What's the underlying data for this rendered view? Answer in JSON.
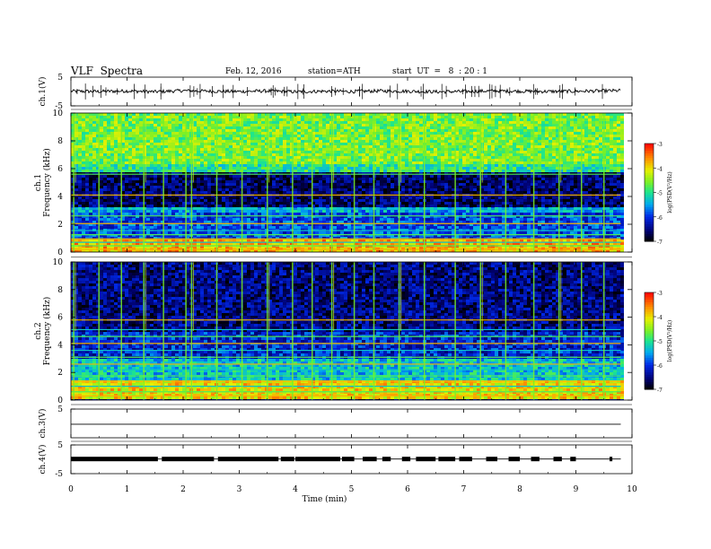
{
  "header": {
    "title": "VLF  Spectra",
    "date": "Feb. 12, 2016",
    "station": "station=ATH",
    "start": "start  UT  =   8  : 20 : 1"
  },
  "chart_data": [
    {
      "type": "line",
      "panel": "ch1-waveform",
      "ylabel": "ch.1(V)",
      "ylim": [
        -5,
        5
      ],
      "yticks": [
        "5",
        "-5"
      ],
      "x": [
        0,
        0.5,
        1,
        1.5,
        2,
        2.5,
        3,
        3.5,
        4,
        4.5,
        5,
        5.5,
        6,
        6.5,
        7,
        7.5,
        8,
        8.5,
        9,
        9.5,
        9.8
      ],
      "values": [
        0.1,
        0.0,
        0.2,
        -0.1,
        0.3,
        0.1,
        0.0,
        0.2,
        -0.1,
        0.1,
        0.0,
        0.2,
        0.1,
        -0.1,
        0.0,
        0.2,
        0.1,
        0.0,
        0.1,
        0.2,
        0.3
      ]
    },
    {
      "type": "heatmap",
      "panel": "ch1-spectrogram",
      "ylabel": "ch.1\nFrequency  (kHz)",
      "ylim": [
        0,
        10
      ],
      "yticks": [
        "0",
        "2",
        "4",
        "6",
        "8",
        "10"
      ],
      "colorbar": {
        "label": "log(PSD(V²/Hz)",
        "range": [
          -7,
          -3
        ],
        "ticks": [
          "-3",
          "-4",
          "-5",
          "-6",
          "-7"
        ]
      },
      "bands_khz": [
        [
          0,
          1.0,
          -3.8
        ],
        [
          1.0,
          2.8,
          -5.9
        ],
        [
          2.8,
          3.3,
          -5.5
        ],
        [
          3.3,
          5.8,
          -6.6
        ],
        [
          5.8,
          6.4,
          -5.0
        ],
        [
          6.4,
          10,
          -4.6
        ]
      ],
      "lines_khz": [
        0.2,
        0.45,
        0.7,
        0.95,
        1.25,
        1.55,
        2.05,
        2.6,
        3.1,
        4.1,
        5.6
      ],
      "bursts_min": [
        0.05,
        0.5,
        0.9,
        1.3,
        1.65,
        2.05,
        2.15,
        2.6,
        3.05,
        3.5,
        3.95,
        4.3,
        4.65,
        5.05,
        5.4,
        5.85,
        6.3,
        6.85,
        7.3,
        7.75,
        8.25,
        8.7,
        9.1,
        9.5
      ]
    },
    {
      "type": "heatmap",
      "panel": "ch2-spectrogram",
      "ylabel": "ch.2\nFrequency  (kHz)",
      "ylim": [
        0,
        10
      ],
      "yticks": [
        "0",
        "2",
        "4",
        "6",
        "8",
        "10"
      ],
      "colorbar": {
        "label": "log(PSD(V²/Hz)",
        "range": [
          -7,
          -3
        ],
        "ticks": [
          "-3",
          "-4",
          "-5",
          "-6",
          "-7"
        ]
      },
      "bands_khz": [
        [
          0,
          1.5,
          -4.0
        ],
        [
          1.5,
          3.0,
          -5.3
        ],
        [
          3.0,
          5.0,
          -6.1
        ],
        [
          5.0,
          10,
          -6.5
        ]
      ],
      "lines_khz": [
        0.3,
        0.6,
        1.0,
        1.35,
        1.75,
        2.2,
        2.6,
        3.1,
        3.6,
        4.1,
        4.6,
        5.1,
        5.8
      ],
      "bursts_min": [
        0.05,
        0.5,
        0.9,
        1.3,
        1.65,
        2.05,
        2.15,
        2.6,
        3.05,
        3.5,
        3.95,
        4.3,
        4.65,
        5.05,
        5.4,
        5.85,
        6.3,
        6.85,
        7.3,
        7.75,
        8.25,
        8.7,
        9.1,
        9.5
      ]
    },
    {
      "type": "line",
      "panel": "ch3-waveform",
      "ylabel": "ch.3(V)",
      "ylim": [
        -5,
        5
      ],
      "yticks": [
        "5"
      ],
      "x": [
        0,
        9.8
      ],
      "values": [
        -0.3,
        -0.3
      ]
    },
    {
      "type": "line",
      "panel": "ch4-waveform",
      "ylabel": "ch.4(V)",
      "ylim": [
        -5,
        5
      ],
      "yticks": [
        "5",
        "-5"
      ],
      "x": [
        0,
        9.8
      ],
      "values": [
        0.1,
        0.1
      ],
      "blocks_min": [
        [
          0.0,
          1.55
        ],
        [
          1.62,
          2.55
        ],
        [
          2.62,
          3.7
        ],
        [
          3.74,
          3.98
        ],
        [
          4.0,
          4.8
        ],
        [
          4.83,
          5.05
        ],
        [
          5.2,
          5.45
        ],
        [
          5.55,
          5.7
        ],
        [
          5.9,
          6.05
        ],
        [
          6.15,
          6.5
        ],
        [
          6.55,
          6.85
        ],
        [
          6.92,
          7.15
        ],
        [
          7.4,
          7.6
        ],
        [
          7.8,
          8.0
        ],
        [
          8.2,
          8.35
        ],
        [
          8.6,
          8.75
        ],
        [
          8.9,
          9.0
        ],
        [
          9.6,
          9.65
        ]
      ]
    }
  ],
  "xaxis": {
    "label": "Time  (min)",
    "range": [
      0,
      10
    ],
    "ticks": [
      "0",
      "1",
      "2",
      "3",
      "4",
      "5",
      "6",
      "7",
      "8",
      "9",
      "10"
    ]
  }
}
